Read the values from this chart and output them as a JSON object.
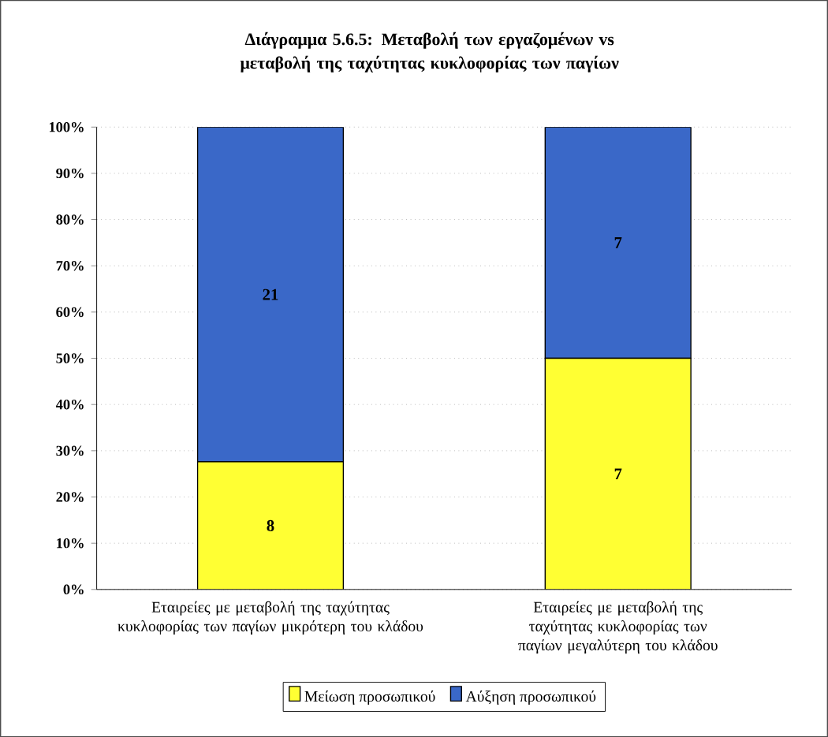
{
  "chart_data": {
    "type": "bar",
    "stacked": true,
    "title": "Διάγραμμα 5.6.5: Μεταβολή των εργαζομένων vs μεταβολή της ταχύτητας κυκλοφορίας των παγίων",
    "categories": [
      "Εταιρείες με μεταβολή της ταχύτητας κυκλοφορίας των παγίων μικρότερη του κλάδου",
      "Εταιρείες με μεταβολή της ταχύτητας κυκλοφορίας των παγίων μεγαλύτερη του κλάδου"
    ],
    "series": [
      {
        "name": "Μείωση προσωπικού",
        "color": "#ffff33",
        "values": [
          27.6,
          50
        ]
      },
      {
        "name": "Αύξηση προσωπικού",
        "color": "#3a68c8",
        "values": [
          72.4,
          50
        ]
      }
    ],
    "annotations": [
      "8",
      "7",
      "21",
      "7"
    ],
    "ylim": [
      0,
      100
    ],
    "yticks": [
      {
        "value": 0,
        "label": "0%"
      },
      {
        "value": 10,
        "label": "10%"
      },
      {
        "value": 20,
        "label": "20%"
      },
      {
        "value": 30,
        "label": "30%"
      },
      {
        "value": 40,
        "label": "40%"
      },
      {
        "value": 50,
        "label": "50%"
      },
      {
        "value": 60,
        "label": "60%"
      },
      {
        "value": 70,
        "label": "70%"
      },
      {
        "value": 80,
        "label": "80%"
      },
      {
        "value": 90,
        "label": "90%"
      },
      {
        "value": 100,
        "label": "100%"
      }
    ],
    "grid": "y",
    "legend": "bottom"
  }
}
